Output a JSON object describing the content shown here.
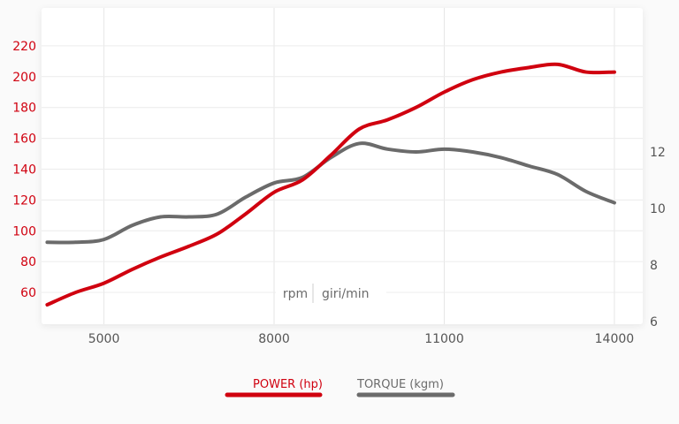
{
  "chart_data": {
    "type": "line",
    "title": "",
    "xlabel": "rpm | giri/min",
    "xlabel_parts": [
      "rpm",
      "giri/min"
    ],
    "x_ticks": [
      5000,
      8000,
      11000,
      14000
    ],
    "xlim": [
      3900,
      14500
    ],
    "y_left": {
      "ticks": [
        60,
        80,
        100,
        120,
        140,
        160,
        180,
        200,
        220
      ],
      "lim": [
        39.4,
        244.6
      ],
      "color": "#d0000f"
    },
    "y_right": {
      "ticks": [
        6,
        8,
        10,
        12
      ],
      "lim": [
        5.9,
        17.1
      ],
      "color": "#6b6b6b"
    },
    "grid": true,
    "legend_placement": "bottom",
    "x": [
      4000,
      4500,
      5000,
      5500,
      6000,
      6500,
      7000,
      7500,
      8000,
      8500,
      9000,
      9500,
      10000,
      10500,
      11000,
      11500,
      12000,
      12500,
      13000,
      13500,
      14000
    ],
    "series": [
      {
        "name": "POWER (hp)",
        "axis": "left",
        "color": "#d0000f",
        "values": [
          52,
          60,
          66,
          75,
          83,
          90,
          98,
          111,
          125,
          133,
          149,
          166,
          172,
          180,
          190,
          198,
          203,
          206,
          208,
          203,
          203
        ]
      },
      {
        "name": "TORQUE (kgm)",
        "axis": "right",
        "color": "#6b6b6b",
        "values": [
          8.8,
          8.8,
          8.9,
          9.4,
          9.7,
          9.7,
          9.8,
          10.4,
          10.9,
          11.1,
          11.8,
          12.3,
          12.1,
          12.0,
          12.1,
          12.0,
          11.8,
          11.5,
          11.2,
          10.6,
          10.2
        ]
      }
    ]
  }
}
